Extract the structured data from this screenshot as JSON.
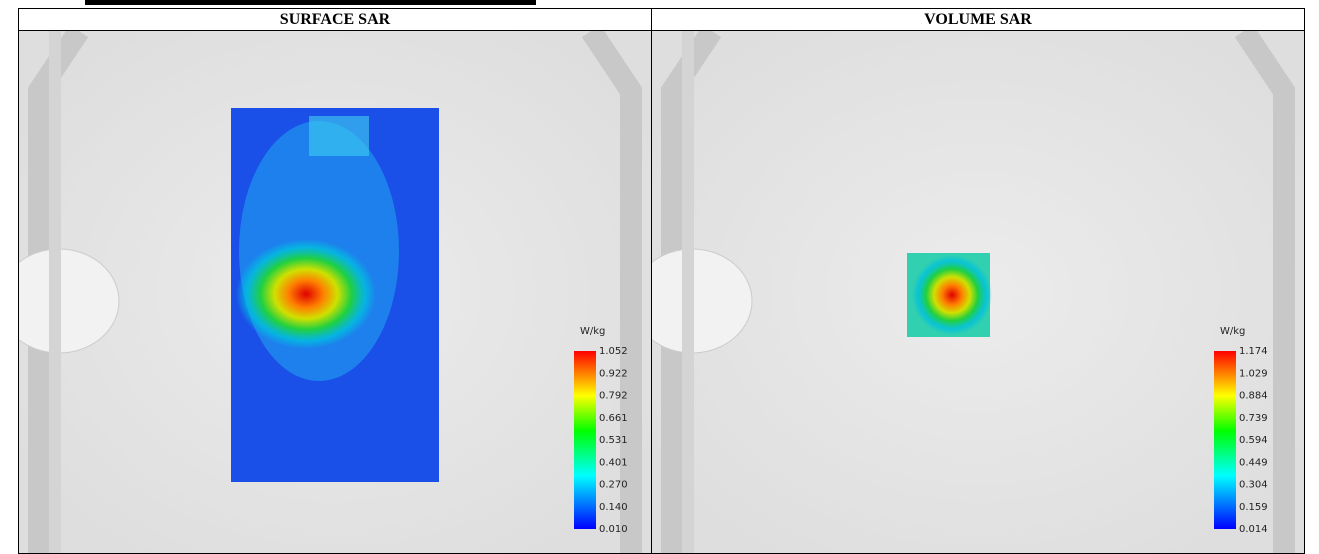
{
  "table": {
    "headers": [
      "SURFACE SAR",
      "VOLUME SAR"
    ]
  },
  "panels": [
    {
      "unit": "W/kg",
      "scale": [
        "1.052",
        "0.922",
        "0.792",
        "0.661",
        "0.531",
        "0.401",
        "0.270",
        "0.140",
        "0.010"
      ]
    },
    {
      "unit": "W/kg",
      "scale": [
        "1.174",
        "1.029",
        "0.884",
        "0.739",
        "0.594",
        "0.449",
        "0.304",
        "0.159",
        "0.014"
      ]
    }
  ]
}
